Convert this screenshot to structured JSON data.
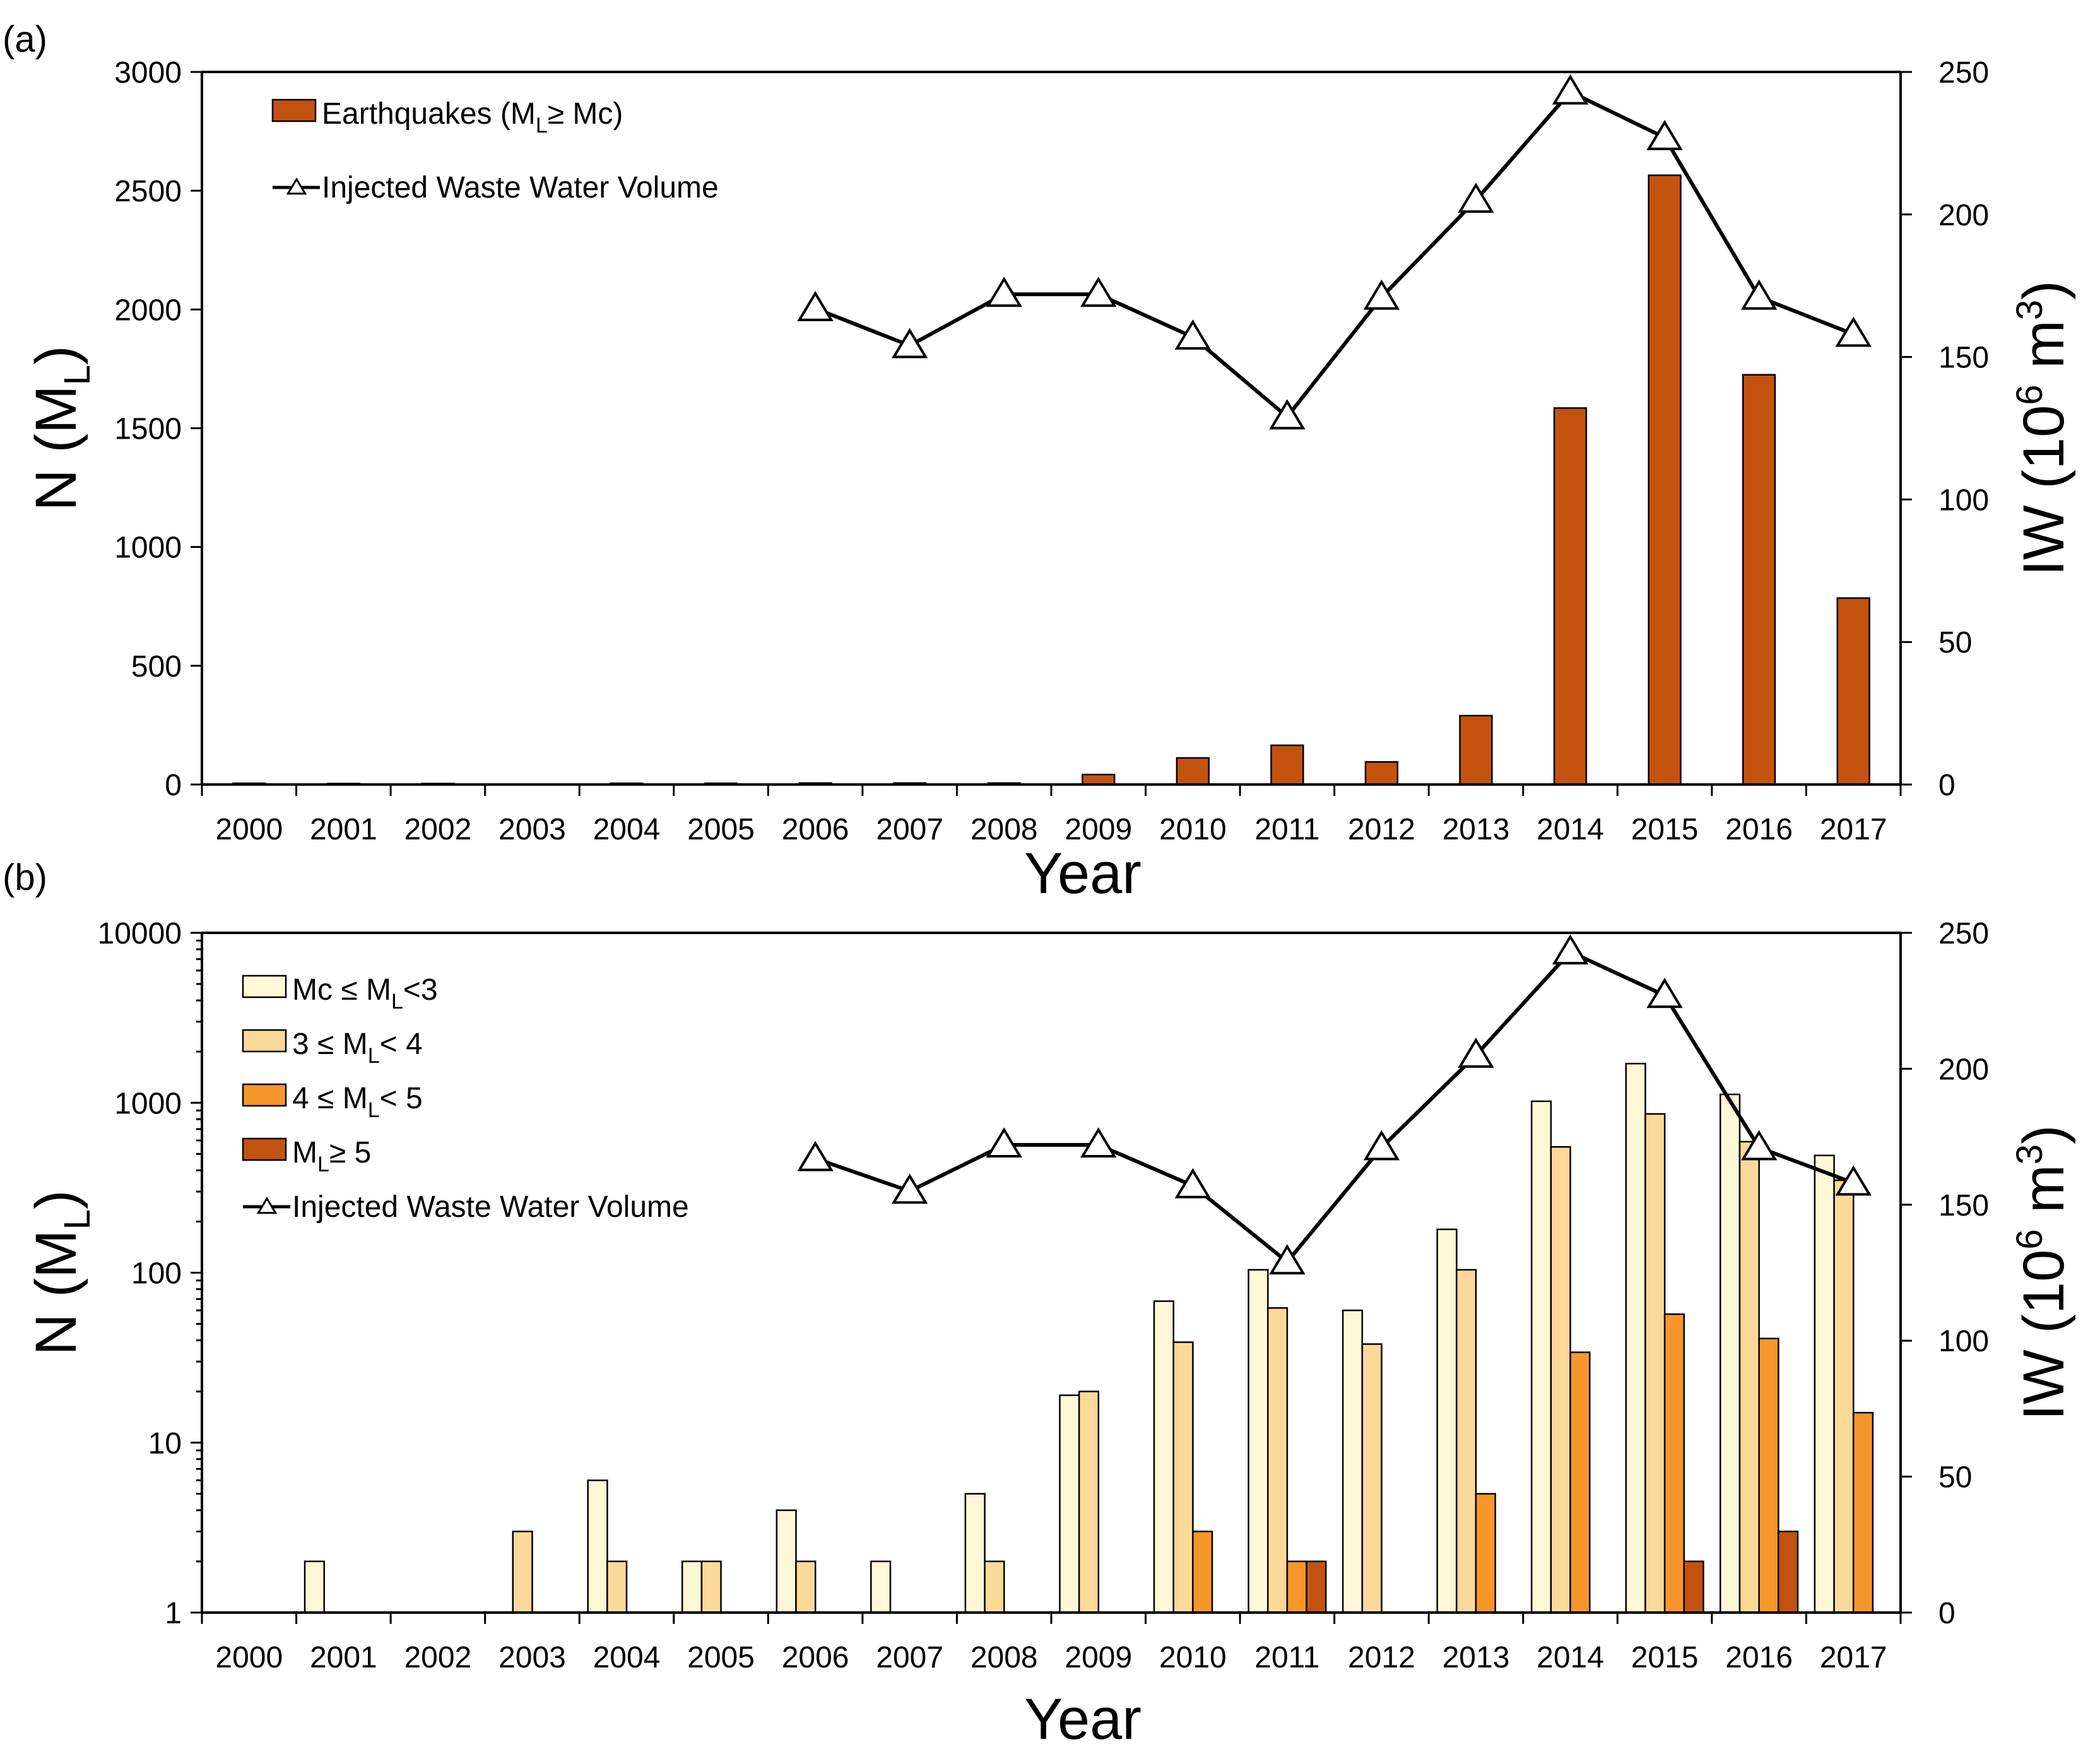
{
  "chart_data": [
    {
      "type": "bar",
      "panel_label": "(a)",
      "xlabel": "Year",
      "ylabel": "N (M",
      "ylabel_sub": "L",
      "ylabel_close": ")",
      "y2label": "IW (10",
      "y2label_sup": "6",
      "y2label_rest": " m",
      "y2label_sup2": "3",
      "y2label_close": ")",
      "categories": [
        "2000",
        "2001",
        "2002",
        "2003",
        "2004",
        "2005",
        "2006",
        "2007",
        "2008",
        "2009",
        "2010",
        "2011",
        "2012",
        "2013",
        "2014",
        "2015",
        "2016",
        "2017"
      ],
      "ylim": [
        0,
        3000
      ],
      "yticks": [
        0,
        500,
        1000,
        1500,
        2000,
        2500,
        3000
      ],
      "y2lim": [
        0,
        250
      ],
      "y2ticks": [
        0,
        50,
        100,
        150,
        200,
        250
      ],
      "legend_position": "top-left",
      "series": [
        {
          "name": "Earthquakes (M",
          "name_sub": "L",
          "name_rest": "≥ Mc)",
          "kind": "bar",
          "color": "#c4520f",
          "values": [
            5,
            4,
            4,
            0,
            5,
            5,
            6,
            6,
            6,
            42,
            112,
            165,
            95,
            290,
            1585,
            2565,
            1725,
            785
          ]
        },
        {
          "name": "Injected Waste Water Volume",
          "kind": "line",
          "axis": "right",
          "color": "#000000",
          "marker": "open-triangle",
          "values": [
            null,
            null,
            null,
            null,
            null,
            null,
            167,
            154,
            172,
            172,
            157,
            129,
            171,
            205,
            243,
            227,
            171,
            158
          ]
        }
      ]
    },
    {
      "type": "bar",
      "panel_label": "(b)",
      "scale": "log",
      "xlabel": "Year",
      "ylabel": "N (M",
      "ylabel_sub": "L",
      "ylabel_close": ")",
      "y2label": "IW (10",
      "y2label_sup": "6",
      "y2label_rest": " m",
      "y2label_sup2": "3",
      "y2label_close": ")",
      "categories": [
        "2000",
        "2001",
        "2002",
        "2003",
        "2004",
        "2005",
        "2006",
        "2007",
        "2008",
        "2009",
        "2010",
        "2011",
        "2012",
        "2013",
        "2014",
        "2015",
        "2016",
        "2017"
      ],
      "ylim": [
        1,
        10000
      ],
      "yticks": [
        1,
        10,
        100,
        1000,
        10000
      ],
      "y2lim": [
        0,
        250
      ],
      "y2ticks": [
        0,
        50,
        100,
        150,
        200,
        250
      ],
      "legend_position": "top-left",
      "series": [
        {
          "name": "Mc ≤ M",
          "name_sub": "L",
          "name_rest": "<3",
          "kind": "bar",
          "color": "#fdf8d6",
          "values": [
            null,
            2,
            null,
            null,
            6,
            2,
            4,
            2,
            5,
            19,
            68,
            104,
            60,
            180,
            1020,
            1700,
            1120,
            490
          ]
        },
        {
          "name": "3 ≤ M",
          "name_sub": "L",
          "name_rest": "< 4",
          "kind": "bar",
          "color": "#fbd998",
          "values": [
            null,
            null,
            null,
            3,
            2,
            2,
            2,
            null,
            2,
            20,
            39,
            62,
            38,
            104,
            550,
            860,
            590,
            350
          ]
        },
        {
          "name": "4 ≤ M",
          "name_sub": "L",
          "name_rest": "< 5",
          "kind": "bar",
          "color": "#f7962b",
          "values": [
            null,
            null,
            null,
            null,
            null,
            null,
            null,
            null,
            null,
            null,
            3,
            2,
            null,
            5,
            34,
            57,
            41,
            15
          ]
        },
        {
          "name": "M",
          "name_sub": "L",
          "name_rest": "≥ 5",
          "kind": "bar",
          "color": "#c4520f",
          "values": [
            null,
            null,
            null,
            null,
            null,
            null,
            null,
            null,
            null,
            null,
            null,
            2,
            null,
            null,
            null,
            2,
            3,
            null
          ]
        },
        {
          "name": "Injected Waste Water Volume",
          "kind": "line",
          "axis": "right",
          "color": "#000000",
          "marker": "open-triangle",
          "values": [
            null,
            null,
            null,
            null,
            null,
            null,
            167,
            155,
            172,
            172,
            157,
            129,
            171,
            205,
            243,
            227,
            171,
            158
          ]
        }
      ]
    }
  ]
}
